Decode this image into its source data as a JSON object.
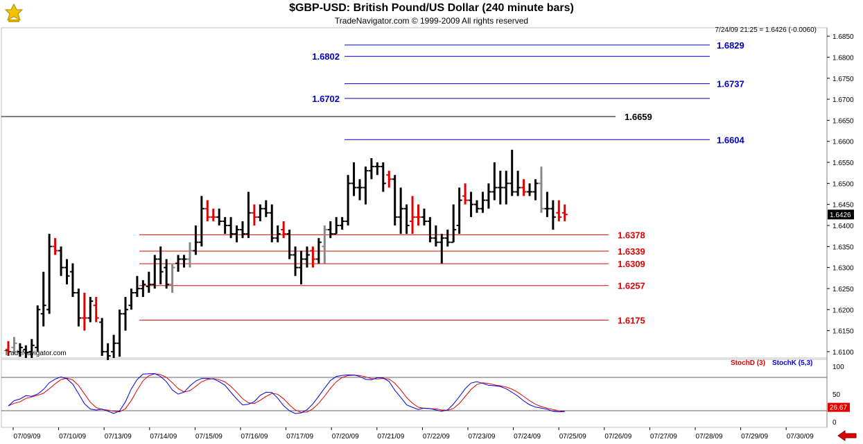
{
  "header": {
    "title": "$GBP-USD:  British Pound/US Dollar  (240 minute bars)",
    "subtitle": "TradeNavigator.com © 1999-2009 All rights reserved"
  },
  "chart_data": {
    "type": "ohlc",
    "price_readout": "7/24/09 21:25 = 1.6426 (-0.0060)",
    "last_price_label": "1.6426",
    "watermark": "TradeNavigator.com",
    "y_axis": {
      "ylim": [
        1.6085,
        1.687
      ],
      "ticks": [
        "1.6100",
        "1.6150",
        "1.6200",
        "1.6250",
        "1.6300",
        "1.6350",
        "1.6400",
        "1.6450",
        "1.6500",
        "1.6550",
        "1.6600",
        "1.6650",
        "1.6700",
        "1.6750",
        "1.6800",
        "1.6850"
      ]
    },
    "x_axis": {
      "tick_labels": [
        "07/09/09",
        "07/10/09",
        "07/13/09",
        "07/14/09",
        "07/15/09",
        "07/16/09",
        "07/17/09",
        "07/20/09",
        "07/21/09",
        "07/22/09",
        "07/23/09",
        "07/24/09",
        "07/25/09",
        "07/26/09",
        "07/27/09",
        "07/28/09",
        "07/29/09",
        "07/30/09"
      ]
    },
    "resistance_levels": [
      {
        "value": 1.6829,
        "label": "1.6829"
      },
      {
        "value": 1.6802,
        "label": "1.6802"
      },
      {
        "value": 1.6737,
        "label": "1.6737"
      },
      {
        "value": 1.6702,
        "label": "1.6702"
      },
      {
        "value": 1.6604,
        "label": "1.6604"
      }
    ],
    "pivot_level": {
      "value": 1.6659,
      "label": "1.6659"
    },
    "support_levels": [
      {
        "value": 1.6378,
        "label": "1.6378"
      },
      {
        "value": 1.6339,
        "label": "1.6339"
      },
      {
        "value": 1.6309,
        "label": "1.6309"
      },
      {
        "value": 1.6257,
        "label": "1.6257"
      },
      {
        "value": 1.6175,
        "label": "1.6175"
      }
    ],
    "bars": [
      {
        "o": 1.6105,
        "h": 1.6125,
        "l": 1.609,
        "c": 1.61,
        "dir": "down"
      },
      {
        "o": 1.611,
        "h": 1.6135,
        "l": 1.6095,
        "c": 1.612,
        "dir": "flat"
      },
      {
        "o": 1.61,
        "h": 1.612,
        "l": 1.6088,
        "c": 1.611,
        "dir": "up"
      },
      {
        "o": 1.6105,
        "h": 1.6115,
        "l": 1.6085,
        "c": 1.6098,
        "dir": "up"
      },
      {
        "o": 1.61,
        "h": 1.613,
        "l": 1.6085,
        "c": 1.6115,
        "dir": "up"
      },
      {
        "o": 1.611,
        "h": 1.621,
        "l": 1.61,
        "c": 1.62,
        "dir": "up"
      },
      {
        "o": 1.619,
        "h": 1.629,
        "l": 1.616,
        "c": 1.621,
        "dir": "up"
      },
      {
        "o": 1.62,
        "h": 1.638,
        "l": 1.619,
        "c": 1.635,
        "dir": "up"
      },
      {
        "o": 1.635,
        "h": 1.637,
        "l": 1.633,
        "c": 1.634,
        "dir": "down"
      },
      {
        "o": 1.634,
        "h": 1.635,
        "l": 1.628,
        "c": 1.63,
        "dir": "up"
      },
      {
        "o": 1.63,
        "h": 1.632,
        "l": 1.626,
        "c": 1.628,
        "dir": "up"
      },
      {
        "o": 1.629,
        "h": 1.631,
        "l": 1.623,
        "c": 1.624,
        "dir": "up"
      },
      {
        "o": 1.624,
        "h": 1.625,
        "l": 1.616,
        "c": 1.618,
        "dir": "up"
      },
      {
        "o": 1.618,
        "h": 1.624,
        "l": 1.615,
        "c": 1.618,
        "dir": "down"
      },
      {
        "o": 1.618,
        "h": 1.623,
        "l": 1.617,
        "c": 1.622,
        "dir": "up"
      },
      {
        "o": 1.621,
        "h": 1.623,
        "l": 1.617,
        "c": 1.618,
        "dir": "down"
      },
      {
        "o": 1.617,
        "h": 1.618,
        "l": 1.609,
        "c": 1.61,
        "dir": "up"
      },
      {
        "o": 1.61,
        "h": 1.612,
        "l": 1.608,
        "c": 1.609,
        "dir": "up"
      },
      {
        "o": 1.61,
        "h": 1.614,
        "l": 1.6085,
        "c": 1.612,
        "dir": "up"
      },
      {
        "o": 1.612,
        "h": 1.62,
        "l": 1.6088,
        "c": 1.619,
        "dir": "up"
      },
      {
        "o": 1.619,
        "h": 1.623,
        "l": 1.615,
        "c": 1.62,
        "dir": "up"
      },
      {
        "o": 1.621,
        "h": 1.625,
        "l": 1.62,
        "c": 1.624,
        "dir": "up"
      },
      {
        "o": 1.624,
        "h": 1.628,
        "l": 1.623,
        "c": 1.625,
        "dir": "up"
      },
      {
        "o": 1.625,
        "h": 1.627,
        "l": 1.623,
        "c": 1.626,
        "dir": "up"
      },
      {
        "o": 1.6255,
        "h": 1.629,
        "l": 1.624,
        "c": 1.626,
        "dir": "up"
      },
      {
        "o": 1.626,
        "h": 1.633,
        "l": 1.625,
        "c": 1.632,
        "dir": "up"
      },
      {
        "o": 1.632,
        "h": 1.635,
        "l": 1.626,
        "c": 1.629,
        "dir": "up"
      },
      {
        "o": 1.63,
        "h": 1.632,
        "l": 1.625,
        "c": 1.626,
        "dir": "up"
      },
      {
        "o": 1.626,
        "h": 1.631,
        "l": 1.624,
        "c": 1.63,
        "dir": "flat"
      },
      {
        "o": 1.631,
        "h": 1.633,
        "l": 1.629,
        "c": 1.632,
        "dir": "up"
      },
      {
        "o": 1.632,
        "h": 1.633,
        "l": 1.63,
        "c": 1.632,
        "dir": "up"
      },
      {
        "o": 1.632,
        "h": 1.636,
        "l": 1.63,
        "c": 1.634,
        "dir": "flat"
      },
      {
        "o": 1.634,
        "h": 1.64,
        "l": 1.633,
        "c": 1.636,
        "dir": "up"
      },
      {
        "o": 1.636,
        "h": 1.647,
        "l": 1.635,
        "c": 1.644,
        "dir": "up"
      },
      {
        "o": 1.644,
        "h": 1.646,
        "l": 1.641,
        "c": 1.642,
        "dir": "down"
      },
      {
        "o": 1.642,
        "h": 1.644,
        "l": 1.641,
        "c": 1.642,
        "dir": "down"
      },
      {
        "o": 1.642,
        "h": 1.644,
        "l": 1.64,
        "c": 1.641,
        "dir": "up"
      },
      {
        "o": 1.641,
        "h": 1.642,
        "l": 1.638,
        "c": 1.64,
        "dir": "up"
      },
      {
        "o": 1.64,
        "h": 1.642,
        "l": 1.637,
        "c": 1.638,
        "dir": "up"
      },
      {
        "o": 1.638,
        "h": 1.64,
        "l": 1.636,
        "c": 1.639,
        "dir": "up"
      },
      {
        "o": 1.639,
        "h": 1.641,
        "l": 1.637,
        "c": 1.638,
        "dir": "up"
      },
      {
        "o": 1.638,
        "h": 1.648,
        "l": 1.637,
        "c": 1.643,
        "dir": "up"
      },
      {
        "o": 1.643,
        "h": 1.645,
        "l": 1.64,
        "c": 1.642,
        "dir": "down"
      },
      {
        "o": 1.642,
        "h": 1.645,
        "l": 1.641,
        "c": 1.644,
        "dir": "up"
      },
      {
        "o": 1.644,
        "h": 1.646,
        "l": 1.642,
        "c": 1.643,
        "dir": "up"
      },
      {
        "o": 1.643,
        "h": 1.645,
        "l": 1.636,
        "c": 1.637,
        "dir": "up"
      },
      {
        "o": 1.637,
        "h": 1.64,
        "l": 1.636,
        "c": 1.638,
        "dir": "up"
      },
      {
        "o": 1.639,
        "h": 1.641,
        "l": 1.637,
        "c": 1.638,
        "dir": "down"
      },
      {
        "o": 1.638,
        "h": 1.639,
        "l": 1.632,
        "c": 1.633,
        "dir": "up"
      },
      {
        "o": 1.633,
        "h": 1.635,
        "l": 1.628,
        "c": 1.63,
        "dir": "up"
      },
      {
        "o": 1.63,
        "h": 1.634,
        "l": 1.626,
        "c": 1.632,
        "dir": "up"
      },
      {
        "o": 1.632,
        "h": 1.635,
        "l": 1.63,
        "c": 1.633,
        "dir": "up"
      },
      {
        "o": 1.634,
        "h": 1.635,
        "l": 1.63,
        "c": 1.632,
        "dir": "down"
      },
      {
        "o": 1.632,
        "h": 1.637,
        "l": 1.631,
        "c": 1.636,
        "dir": "up"
      },
      {
        "o": 1.635,
        "h": 1.64,
        "l": 1.631,
        "c": 1.639,
        "dir": "flat"
      },
      {
        "o": 1.639,
        "h": 1.641,
        "l": 1.637,
        "c": 1.638,
        "dir": "up"
      },
      {
        "o": 1.638,
        "h": 1.642,
        "l": 1.638,
        "c": 1.64,
        "dir": "up"
      },
      {
        "o": 1.64,
        "h": 1.642,
        "l": 1.639,
        "c": 1.641,
        "dir": "up"
      },
      {
        "o": 1.641,
        "h": 1.652,
        "l": 1.64,
        "c": 1.65,
        "dir": "up"
      },
      {
        "o": 1.65,
        "h": 1.655,
        "l": 1.647,
        "c": 1.649,
        "dir": "up"
      },
      {
        "o": 1.649,
        "h": 1.651,
        "l": 1.646,
        "c": 1.649,
        "dir": "up"
      },
      {
        "o": 1.649,
        "h": 1.654,
        "l": 1.645,
        "c": 1.653,
        "dir": "up"
      },
      {
        "o": 1.653,
        "h": 1.656,
        "l": 1.651,
        "c": 1.654,
        "dir": "up"
      },
      {
        "o": 1.654,
        "h": 1.655,
        "l": 1.652,
        "c": 1.654,
        "dir": "up"
      },
      {
        "o": 1.654,
        "h": 1.655,
        "l": 1.648,
        "c": 1.65,
        "dir": "up"
      },
      {
        "o": 1.652,
        "h": 1.653,
        "l": 1.649,
        "c": 1.651,
        "dir": "down"
      },
      {
        "o": 1.651,
        "h": 1.652,
        "l": 1.64,
        "c": 1.642,
        "dir": "up"
      },
      {
        "o": 1.642,
        "h": 1.649,
        "l": 1.638,
        "c": 1.644,
        "dir": "up"
      },
      {
        "o": 1.644,
        "h": 1.645,
        "l": 1.638,
        "c": 1.64,
        "dir": "up"
      },
      {
        "o": 1.641,
        "h": 1.647,
        "l": 1.638,
        "c": 1.642,
        "dir": "down"
      },
      {
        "o": 1.642,
        "h": 1.645,
        "l": 1.64,
        "c": 1.642,
        "dir": "down"
      },
      {
        "o": 1.642,
        "h": 1.644,
        "l": 1.64,
        "c": 1.641,
        "dir": "up"
      },
      {
        "o": 1.641,
        "h": 1.642,
        "l": 1.636,
        "c": 1.637,
        "dir": "up"
      },
      {
        "o": 1.637,
        "h": 1.64,
        "l": 1.635,
        "c": 1.636,
        "dir": "up"
      },
      {
        "o": 1.636,
        "h": 1.638,
        "l": 1.631,
        "c": 1.637,
        "dir": "up"
      },
      {
        "o": 1.637,
        "h": 1.639,
        "l": 1.635,
        "c": 1.636,
        "dir": "up"
      },
      {
        "o": 1.636,
        "h": 1.645,
        "l": 1.636,
        "c": 1.639,
        "dir": "up"
      },
      {
        "o": 1.64,
        "h": 1.649,
        "l": 1.638,
        "c": 1.646,
        "dir": "up"
      },
      {
        "o": 1.647,
        "h": 1.65,
        "l": 1.645,
        "c": 1.646,
        "dir": "down"
      },
      {
        "o": 1.646,
        "h": 1.648,
        "l": 1.642,
        "c": 1.645,
        "dir": "up"
      },
      {
        "o": 1.645,
        "h": 1.646,
        "l": 1.643,
        "c": 1.644,
        "dir": "up"
      },
      {
        "o": 1.644,
        "h": 1.648,
        "l": 1.643,
        "c": 1.646,
        "dir": "up"
      },
      {
        "o": 1.646,
        "h": 1.65,
        "l": 1.644,
        "c": 1.648,
        "dir": "up"
      },
      {
        "o": 1.648,
        "h": 1.655,
        "l": 1.646,
        "c": 1.649,
        "dir": "up"
      },
      {
        "o": 1.649,
        "h": 1.653,
        "l": 1.645,
        "c": 1.649,
        "dir": "up"
      },
      {
        "o": 1.649,
        "h": 1.653,
        "l": 1.645,
        "c": 1.65,
        "dir": "up"
      },
      {
        "o": 1.65,
        "h": 1.658,
        "l": 1.647,
        "c": 1.648,
        "dir": "up"
      },
      {
        "o": 1.648,
        "h": 1.653,
        "l": 1.647,
        "c": 1.649,
        "dir": "up"
      },
      {
        "o": 1.649,
        "h": 1.651,
        "l": 1.647,
        "c": 1.648,
        "dir": "down"
      },
      {
        "o": 1.648,
        "h": 1.65,
        "l": 1.647,
        "c": 1.648,
        "dir": "up"
      },
      {
        "o": 1.648,
        "h": 1.651,
        "l": 1.646,
        "c": 1.65,
        "dir": "up"
      },
      {
        "o": 1.65,
        "h": 1.654,
        "l": 1.643,
        "c": 1.644,
        "dir": "flat"
      },
      {
        "o": 1.644,
        "h": 1.648,
        "l": 1.642,
        "c": 1.644,
        "dir": "up"
      },
      {
        "o": 1.644,
        "h": 1.646,
        "l": 1.639,
        "c": 1.642,
        "dir": "up"
      },
      {
        "o": 1.643,
        "h": 1.646,
        "l": 1.641,
        "c": 1.642,
        "dir": "down"
      },
      {
        "o": 1.643,
        "h": 1.645,
        "l": 1.641,
        "c": 1.6426,
        "dir": "down"
      }
    ],
    "stochastic": {
      "ylim": [
        0,
        100
      ],
      "ticks": [
        "100",
        "50",
        "0"
      ],
      "upper_level": 80,
      "lower_level": 20,
      "last_value_label": "26.67",
      "stoch_d": {
        "name": "StochD (3)",
        "color": "#e00000"
      },
      "stoch_k": {
        "name": "StochK (5,3)",
        "color": "#0000e0"
      }
    }
  },
  "colors": {
    "up_bar": "#000000",
    "down_bar": "#e00000",
    "flat_bar": "#888888",
    "resistance": "#0000c0",
    "support": "#e00000",
    "pivot": "#000000"
  },
  "icons": {
    "logo": "trade-navigator-logo-icon",
    "scroll": "red-arrow-left-icon"
  }
}
